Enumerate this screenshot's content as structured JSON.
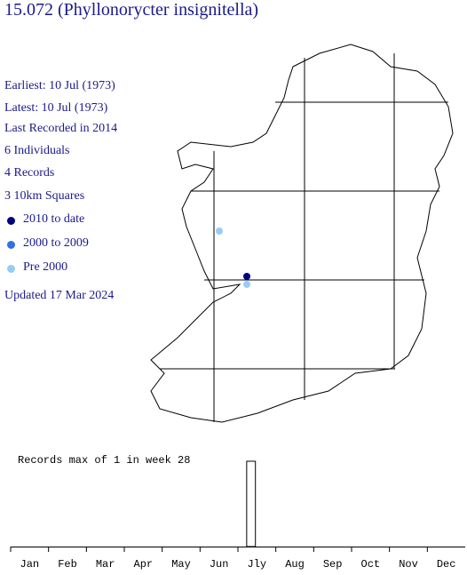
{
  "header": {
    "title": "15.072 (Phyllonorycter insignitella)"
  },
  "stats": [
    "Earliest: 10 Jul (1973)",
    "Latest: 10 Jul (1973)",
    "Last Recorded in 2014",
    "6 Individuals",
    "4 Records",
    "3 10km Squares"
  ],
  "legend": [
    {
      "label": "2010 to date",
      "color": "#000080"
    },
    {
      "label": "2000 to 2009",
      "color": "#3370e6"
    },
    {
      "label": "Pre 2000",
      "color": "#99ccf5"
    }
  ],
  "updated": "Updated 17 Mar 2024",
  "phenology": {
    "caption": "Records max of 1 in week 28",
    "months": [
      "Jan",
      "Feb",
      "Mar",
      "Apr",
      "May",
      "Jun",
      "Jly",
      "Aug",
      "Sep",
      "Oct",
      "Nov",
      "Dec"
    ],
    "records": [
      {
        "week": 28,
        "count": 1
      }
    ]
  }
}
